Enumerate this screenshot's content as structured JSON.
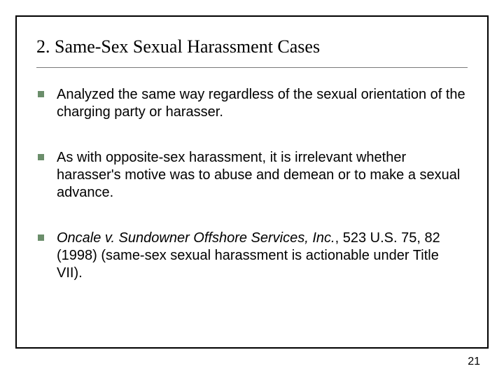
{
  "title": "2. Same-Sex Sexual Harassment Cases",
  "bullets": [
    {
      "plain": "Analyzed the same way regardless of the sexual orientation of the charging party or harasser."
    },
    {
      "plain": "As with opposite-sex harassment, it is irrelevant whether harasser's motive was to abuse and demean or to make a sexual advance."
    },
    {
      "italic": "Oncale v. Sundowner Offshore Services, Inc.",
      "plain": ", 523 U.S. 75, 82 (1998) (same-sex sexual harassment is actionable under Title VII)."
    }
  ],
  "page_number": "21",
  "style": {
    "bullet_color": "#6b8e6b",
    "frame_border_color": "#000000",
    "title_font": "Times New Roman",
    "body_font": "Arial",
    "title_fontsize": 26,
    "body_fontsize": 20,
    "background": "#ffffff"
  }
}
